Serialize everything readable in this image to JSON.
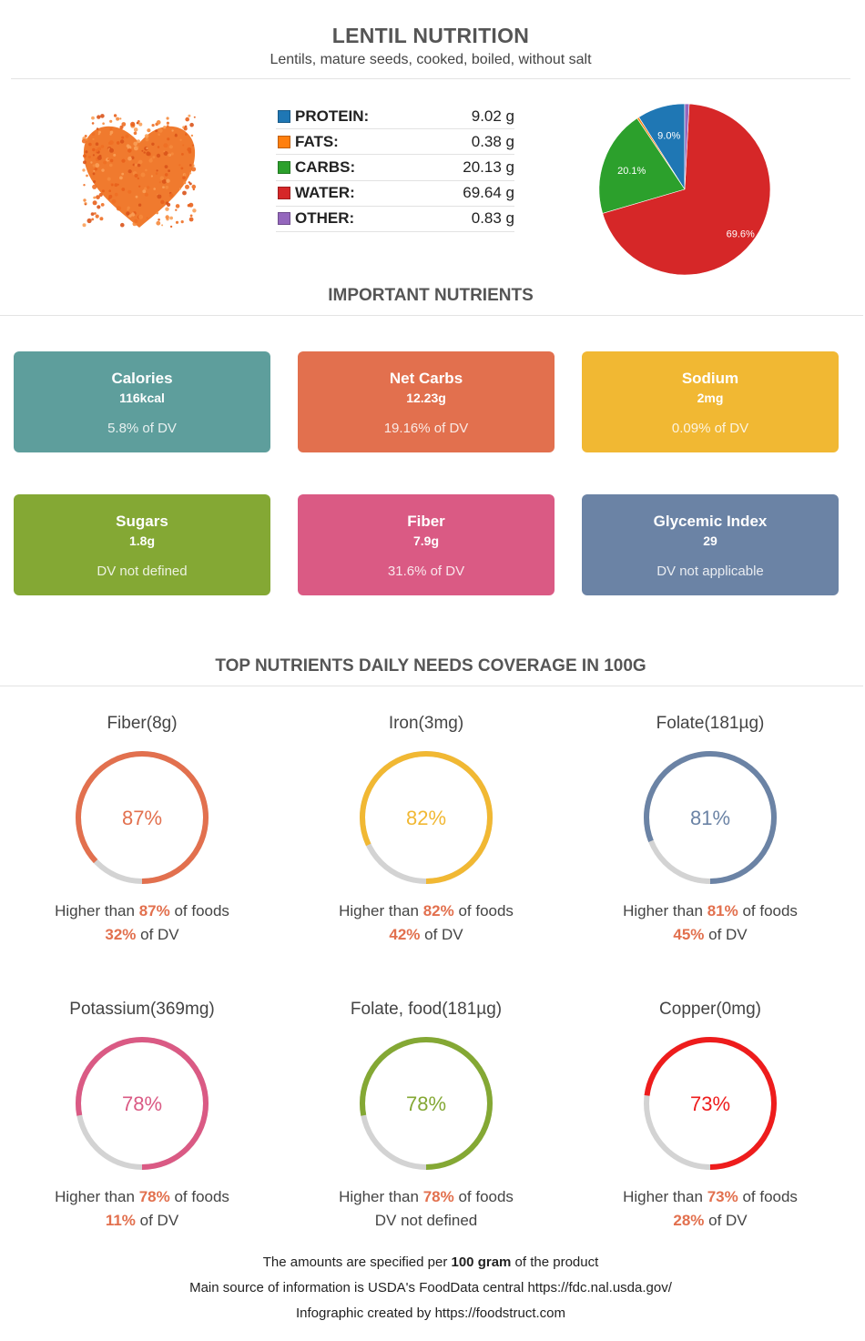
{
  "header": {
    "title": "LENTIL NUTRITION",
    "subtitle": "Lentils, mature seeds, cooked, boiled, without salt"
  },
  "macros": [
    {
      "label": "PROTEIN:",
      "value": "9.02 g",
      "color": "#1f77b4"
    },
    {
      "label": "FATS:",
      "value": "0.38 g",
      "color": "#ff7f0e"
    },
    {
      "label": "CARBS:",
      "value": "20.13 g",
      "color": "#2ca02c"
    },
    {
      "label": "WATER:",
      "value": "69.64 g",
      "color": "#d62728"
    },
    {
      "label": "OTHER:",
      "value": "0.83 g",
      "color": "#9467bd"
    }
  ],
  "chart_data": {
    "type": "pie",
    "slices": [
      {
        "name": "PROTEIN",
        "value": 9.02,
        "label": "9.0%",
        "color": "#1f77b4"
      },
      {
        "name": "FATS",
        "value": 0.38,
        "label": "",
        "color": "#ff7f0e"
      },
      {
        "name": "CARBS",
        "value": 20.13,
        "label": "20.1%",
        "color": "#2ca02c"
      },
      {
        "name": "WATER",
        "value": 69.64,
        "label": "69.6%",
        "color": "#d62728"
      },
      {
        "name": "OTHER",
        "value": 0.83,
        "label": "",
        "color": "#9467bd"
      }
    ]
  },
  "sections": {
    "important": "IMPORTANT NUTRIENTS",
    "coverage": "TOP NUTRIENTS DAILY NEEDS COVERAGE IN 100G"
  },
  "cards": [
    {
      "name": "Calories",
      "value": "116kcal",
      "dv": "5.8% of DV",
      "color": "#5e9e9c"
    },
    {
      "name": "Net Carbs",
      "value": "12.23g",
      "dv": "19.16% of DV",
      "color": "#e2704e"
    },
    {
      "name": "Sodium",
      "value": "2mg",
      "dv": "0.09% of DV",
      "color": "#f1b833"
    },
    {
      "name": "Sugars",
      "value": "1.8g",
      "dv": "DV not defined",
      "color": "#84a834"
    },
    {
      "name": "Fiber",
      "value": "7.9g",
      "dv": "31.6% of DV",
      "color": "#da5a84"
    },
    {
      "name": "Glycemic Index",
      "value": "29",
      "dv": "DV not applicable",
      "color": "#6b83a5"
    }
  ],
  "coverage": [
    {
      "title": "Fiber(8g)",
      "percent": 87,
      "percent_label": "87%",
      "higher_pre": "Higher than ",
      "higher_pct": "87%",
      "higher_post": " of foods",
      "dv_pct": "32%",
      "dv_post": " of DV",
      "color": "#e2704e"
    },
    {
      "title": "Iron(3mg)",
      "percent": 82,
      "percent_label": "82%",
      "higher_pre": "Higher than ",
      "higher_pct": "82%",
      "higher_post": " of foods",
      "dv_pct": "42%",
      "dv_post": " of DV",
      "color": "#f1b833"
    },
    {
      "title": "Folate(181µg)",
      "percent": 81,
      "percent_label": "81%",
      "higher_pre": "Higher than ",
      "higher_pct": "81%",
      "higher_post": " of foods",
      "dv_pct": "45%",
      "dv_post": " of DV",
      "color": "#6b83a5"
    },
    {
      "title": "Potassium(369mg)",
      "percent": 78,
      "percent_label": "78%",
      "higher_pre": "Higher than ",
      "higher_pct": "78%",
      "higher_post": " of foods",
      "dv_pct": "11%",
      "dv_post": " of DV",
      "color": "#da5a84"
    },
    {
      "title": "Folate, food(181µg)",
      "percent": 78,
      "percent_label": "78%",
      "higher_pre": "Higher than ",
      "higher_pct": "78%",
      "higher_post": " of foods",
      "dv_pct": "",
      "dv_post": "DV not defined",
      "color": "#84a834"
    },
    {
      "title": "Copper(0mg)",
      "percent": 73,
      "percent_label": "73%",
      "higher_pre": "Higher than ",
      "higher_pct": "73%",
      "higher_post": " of foods",
      "dv_pct": "28%",
      "dv_post": " of DV",
      "color": "#ee1c1c"
    }
  ],
  "ring_track_color": "#d3d3d3",
  "footer": {
    "line1_pre": "The amounts are specified per ",
    "line1_bold": "100 gram",
    "line1_post": " of the product",
    "line2": "Main source of information is USDA's FoodData central https://fdc.nal.usda.gov/",
    "line3": "Infographic created by https://foodstruct.com"
  }
}
